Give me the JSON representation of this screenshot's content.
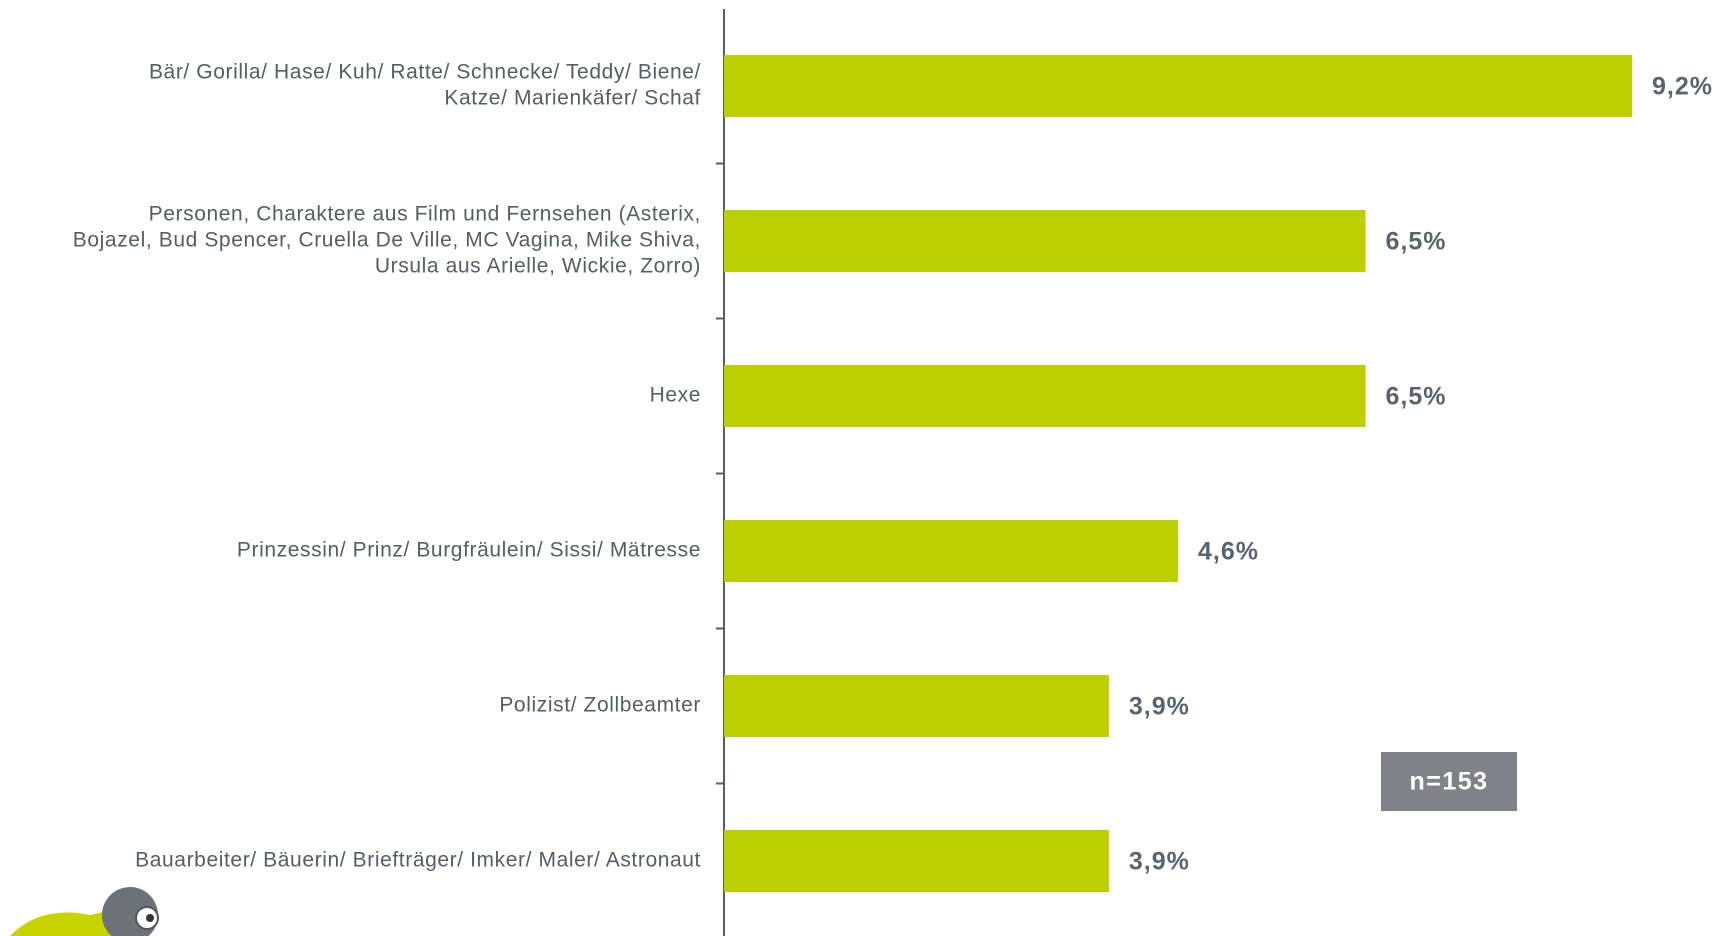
{
  "chart_data": {
    "type": "hbar",
    "categories": [
      [
        "Bär/ Gorilla/ Hase/ Kuh/ Ratte/ Schnecke/ Teddy/ Biene/",
        "Katze/ Marienkäfer/ Schaf"
      ],
      [
        "Personen, Charaktere aus Film und Fernsehen (Asterix,",
        "Bojazel, Bud Spencer, Cruella De Ville, MC Vagina, Mike Shiva,",
        "Ursula aus Arielle, Wickie, Zorro)"
      ],
      [
        "Hexe"
      ],
      [
        "Prinzessin/ Prinz/ Burgfräulein/ Sissi/ Mätresse"
      ],
      [
        "Polizist/ Zollbeamter"
      ],
      [
        "Bauarbeiter/ Bäuerin/ Briefträger/ Imker/ Maler/ Astronaut"
      ]
    ],
    "values": [
      9.2,
      6.5,
      6.5,
      4.6,
      3.9,
      3.9
    ],
    "value_labels": [
      "9,2%",
      "6,5%",
      "6,5%",
      "4,6%",
      "3,9%",
      "3,9%"
    ],
    "color": "#bccf00",
    "annotation": "n=153"
  }
}
